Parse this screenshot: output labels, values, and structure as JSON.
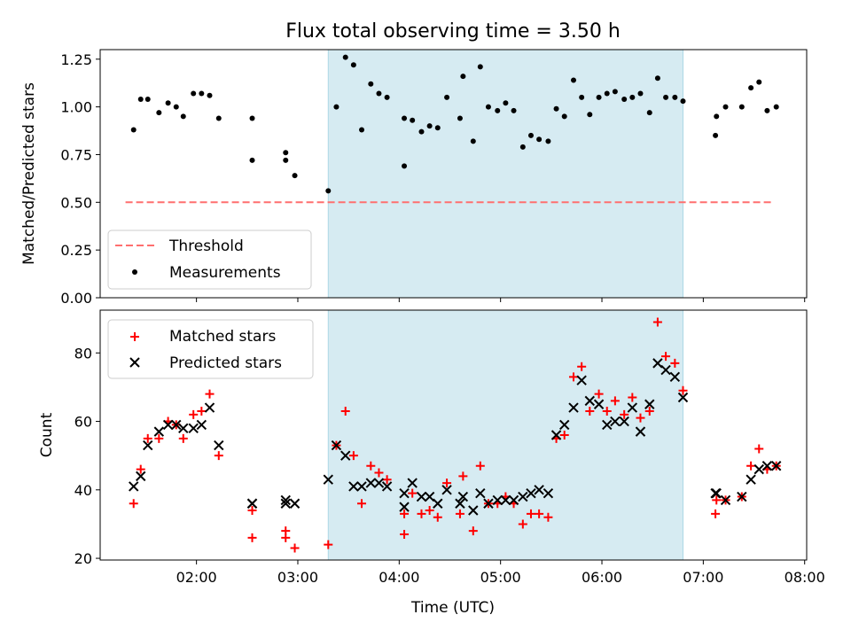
{
  "chart_data": [
    {
      "type": "scatter",
      "title": "Flux total observing time = 3.50 h",
      "ylabel": "Matched/Predicted stars",
      "xlabel": "",
      "x_unit": "hours UTC",
      "xlim": [
        1.05,
        8.02
      ],
      "ylim": [
        0.0,
        1.3
      ],
      "yticks": [
        0.0,
        0.25,
        0.5,
        0.75,
        1.0,
        1.25
      ],
      "ytick_labels": [
        "0.00",
        "0.25",
        "0.50",
        "0.75",
        "1.00",
        "1.25"
      ],
      "xticks": [
        2,
        3,
        4,
        5,
        6,
        7,
        8
      ],
      "xtick_labels_visible": false,
      "grid": false,
      "shaded_span": {
        "x0": 3.3,
        "x1": 6.8,
        "color": "#add8e6"
      },
      "legend_position": "lower-left",
      "series": [
        {
          "name": "Threshold",
          "kind": "line",
          "style": "dashed",
          "color": "#ff6f6f",
          "x": [
            1.3,
            7.7
          ],
          "y": [
            0.5,
            0.5
          ]
        },
        {
          "name": "Measurements",
          "kind": "points",
          "color": "#000000",
          "x": [
            1.38,
            1.45,
            1.52,
            1.63,
            1.72,
            1.8,
            1.87,
            1.97,
            2.05,
            2.13,
            2.22,
            2.55,
            2.55,
            2.88,
            2.88,
            2.97,
            3.3,
            3.38,
            3.47,
            3.55,
            3.63,
            3.72,
            3.8,
            3.88,
            4.05,
            4.05,
            4.13,
            4.22,
            4.3,
            4.38,
            4.47,
            4.6,
            4.63,
            4.73,
            4.8,
            4.88,
            4.97,
            5.05,
            5.13,
            5.22,
            5.3,
            5.38,
            5.47,
            5.55,
            5.63,
            5.72,
            5.8,
            5.88,
            5.97,
            6.05,
            6.13,
            6.22,
            6.3,
            6.38,
            6.47,
            6.55,
            6.63,
            6.72,
            6.8,
            7.12,
            7.13,
            7.22,
            7.38,
            7.47,
            7.55,
            7.63,
            7.72
          ],
          "y": [
            0.88,
            1.04,
            1.04,
            0.97,
            1.02,
            1.0,
            0.95,
            1.07,
            1.07,
            1.06,
            0.94,
            0.72,
            0.94,
            0.72,
            0.76,
            0.64,
            0.56,
            1.0,
            1.26,
            1.22,
            0.88,
            1.12,
            1.07,
            1.05,
            0.94,
            0.69,
            0.93,
            0.87,
            0.9,
            0.89,
            1.05,
            0.94,
            1.16,
            0.82,
            1.21,
            1.0,
            0.98,
            1.02,
            0.98,
            0.79,
            0.85,
            0.83,
            0.82,
            0.99,
            0.95,
            1.14,
            1.05,
            0.96,
            1.05,
            1.07,
            1.08,
            1.04,
            1.05,
            1.07,
            0.97,
            1.15,
            1.05,
            1.05,
            1.03,
            0.85,
            0.95,
            1.0,
            1.0,
            1.1,
            1.13,
            0.98,
            1.0
          ]
        }
      ]
    },
    {
      "type": "scatter",
      "title": "",
      "ylabel": "Count",
      "xlabel": "Time (UTC)",
      "x_unit": "hours UTC",
      "xlim": [
        1.05,
        8.02
      ],
      "ylim": [
        19.5,
        92.5
      ],
      "yticks": [
        20,
        40,
        60,
        80
      ],
      "ytick_labels": [
        "20",
        "40",
        "60",
        "80"
      ],
      "xticks": [
        2,
        3,
        4,
        5,
        6,
        7,
        8
      ],
      "xtick_labels": [
        "02:00",
        "03:00",
        "04:00",
        "05:00",
        "06:00",
        "07:00",
        "08:00"
      ],
      "grid": false,
      "shaded_span": {
        "x0": 3.3,
        "x1": 6.8,
        "color": "#add8e6"
      },
      "legend_position": "upper-left",
      "series": [
        {
          "name": "Matched stars",
          "marker": "plus",
          "color": "#ff0000",
          "x": [
            1.38,
            1.45,
            1.52,
            1.63,
            1.72,
            1.8,
            1.87,
            1.97,
            2.05,
            2.13,
            2.22,
            2.55,
            2.55,
            2.88,
            2.88,
            2.97,
            3.3,
            3.38,
            3.47,
            3.55,
            3.63,
            3.72,
            3.8,
            3.88,
            4.05,
            4.05,
            4.13,
            4.22,
            4.3,
            4.38,
            4.47,
            4.6,
            4.63,
            4.73,
            4.8,
            4.88,
            4.97,
            5.05,
            5.13,
            5.22,
            5.3,
            5.38,
            5.47,
            5.55,
            5.63,
            5.72,
            5.8,
            5.88,
            5.97,
            6.05,
            6.13,
            6.22,
            6.3,
            6.38,
            6.47,
            6.55,
            6.63,
            6.72,
            6.8,
            7.12,
            7.13,
            7.22,
            7.38,
            7.47,
            7.55,
            7.63,
            7.72
          ],
          "y": [
            36,
            46,
            55,
            55,
            60,
            59,
            55,
            62,
            63,
            68,
            50,
            26,
            34,
            26,
            28,
            23,
            24,
            53,
            63,
            50,
            36,
            47,
            45,
            43,
            33,
            27,
            39,
            33,
            34,
            32,
            42,
            33,
            44,
            28,
            47,
            36,
            36,
            38,
            36,
            30,
            33,
            33,
            32,
            55,
            56,
            73,
            76,
            63,
            68,
            63,
            66,
            62,
            67,
            61,
            63,
            89,
            79,
            77,
            69,
            33,
            37,
            37,
            38,
            47,
            52,
            46,
            47
          ]
        },
        {
          "name": "Predicted stars",
          "marker": "x",
          "color": "#000000",
          "x": [
            1.38,
            1.45,
            1.52,
            1.63,
            1.72,
            1.8,
            1.87,
            1.97,
            2.05,
            2.13,
            2.22,
            2.55,
            2.55,
            2.88,
            2.88,
            2.97,
            3.3,
            3.38,
            3.47,
            3.55,
            3.63,
            3.72,
            3.8,
            3.88,
            4.05,
            4.05,
            4.13,
            4.22,
            4.3,
            4.38,
            4.47,
            4.6,
            4.63,
            4.73,
            4.8,
            4.88,
            4.97,
            5.05,
            5.13,
            5.22,
            5.3,
            5.38,
            5.47,
            5.55,
            5.63,
            5.72,
            5.8,
            5.88,
            5.97,
            6.05,
            6.13,
            6.22,
            6.3,
            6.38,
            6.47,
            6.55,
            6.63,
            6.72,
            6.8,
            7.12,
            7.13,
            7.22,
            7.38,
            7.47,
            7.55,
            7.63,
            7.72
          ],
          "y": [
            41,
            44,
            53,
            57,
            59,
            59,
            58,
            58,
            59,
            64,
            53,
            36,
            36,
            36,
            37,
            36,
            43,
            53,
            50,
            41,
            41,
            42,
            42,
            41,
            35,
            39,
            42,
            38,
            38,
            36,
            40,
            36,
            38,
            34,
            39,
            36,
            37,
            37,
            37,
            38,
            39,
            40,
            39,
            56,
            59,
            64,
            72,
            66,
            65,
            59,
            60,
            60,
            64,
            57,
            65,
            77,
            75,
            73,
            67,
            39,
            39,
            37,
            38,
            43,
            46,
            47,
            47
          ]
        }
      ]
    }
  ]
}
